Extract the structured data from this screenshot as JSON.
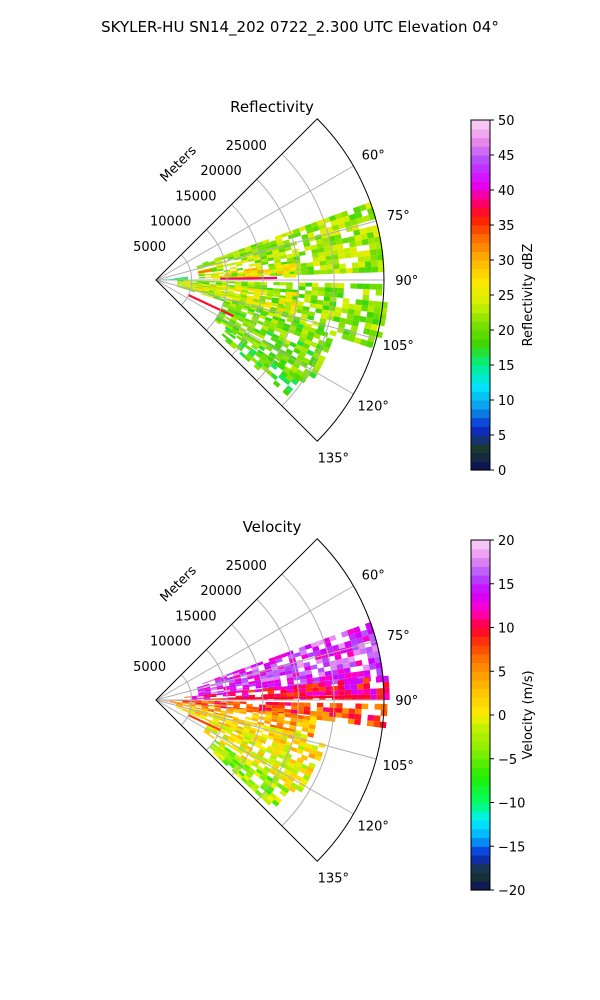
{
  "suptitle": "SKYLER-HU  SN14_202  0722_2.300 UTC Elevation 04°",
  "range_axis_label": "Meters",
  "chart_data": [
    {
      "type": "heatmap",
      "title": "Reflectivity",
      "projection": "polar sector",
      "azimuth_range_deg": [
        45,
        135
      ],
      "range_max_m": 32000,
      "range_ticks": [
        5000,
        10000,
        15000,
        20000,
        25000
      ],
      "range_tick_labels": [
        "5000",
        "10000",
        "15000",
        "20000",
        "25000"
      ],
      "angle_ticks_deg": [
        60,
        75,
        90,
        105,
        120,
        135
      ],
      "angle_tick_labels": [
        "60°",
        "75°",
        "90°",
        "105°",
        "120°",
        "135°"
      ],
      "grid": true,
      "colorbar": {
        "label": "Reflectivity dBZ",
        "min": 0,
        "max": 50,
        "ticks": [
          0,
          5,
          10,
          15,
          20,
          25,
          30,
          35,
          40,
          45,
          50
        ],
        "tick_labels": [
          "0",
          "5",
          "10",
          "15",
          "20",
          "25",
          "30",
          "35",
          "40",
          "45",
          "50"
        ]
      },
      "echo_sectors": [
        {
          "az": [
            70,
            88
          ],
          "r": [
            6000,
            32000
          ],
          "value": 22
        },
        {
          "az": [
            83,
            89
          ],
          "r": [
            8000,
            19000
          ],
          "value": 27
        },
        {
          "az": [
            91,
            107
          ],
          "r": [
            3000,
            32000
          ],
          "value": 21
        },
        {
          "az": [
            95,
            104
          ],
          "r": [
            4000,
            20000
          ],
          "value": 25
        },
        {
          "az": [
            107,
            124
          ],
          "r": [
            10000,
            26000
          ],
          "value": 20
        },
        {
          "az": [
            124,
            131
          ],
          "r": [
            12000,
            24000
          ],
          "value": 19
        },
        {
          "az": [
            84,
            90
          ],
          "r": [
            0,
            4000
          ],
          "value": 16
        }
      ],
      "echo_lines": [
        {
          "az": 89,
          "r": [
            9000,
            17000
          ],
          "value": 38
        },
        {
          "az": 115,
          "r": [
            5000,
            12000
          ],
          "value": 37
        },
        {
          "az": 80,
          "r": [
            6000,
            8000
          ],
          "value": 33
        }
      ]
    },
    {
      "type": "heatmap",
      "title": "Velocity",
      "projection": "polar sector",
      "azimuth_range_deg": [
        45,
        135
      ],
      "range_max_m": 32000,
      "range_ticks": [
        5000,
        10000,
        15000,
        20000,
        25000
      ],
      "range_tick_labels": [
        "5000",
        "10000",
        "15000",
        "20000",
        "25000"
      ],
      "angle_ticks_deg": [
        60,
        75,
        90,
        105,
        120,
        135
      ],
      "angle_tick_labels": [
        "60°",
        "75°",
        "90°",
        "105°",
        "120°",
        "135°"
      ],
      "grid": true,
      "colorbar": {
        "label": "Velocity (m/s)",
        "min": -20,
        "max": 20,
        "ticks": [
          -20,
          -15,
          -10,
          -5,
          0,
          5,
          10,
          15,
          20
        ],
        "tick_labels": [
          "−20",
          "−15",
          "−10",
          "−5",
          "0",
          "5",
          "10",
          "15",
          "20"
        ]
      },
      "echo_sectors": [
        {
          "az": [
            70,
            84
          ],
          "r": [
            6000,
            32000
          ],
          "value": 15
        },
        {
          "az": [
            84,
            89
          ],
          "r": [
            4000,
            32000
          ],
          "value": 11
        },
        {
          "az": [
            91,
            96
          ],
          "r": [
            1000,
            32000
          ],
          "value": 8
        },
        {
          "az": [
            96,
            103
          ],
          "r": [
            2000,
            22000
          ],
          "value": 4
        },
        {
          "az": [
            103,
            112
          ],
          "r": [
            3000,
            24000
          ],
          "value": 1
        },
        {
          "az": [
            112,
            124
          ],
          "r": [
            8000,
            24000
          ],
          "value": 0
        },
        {
          "az": [
            124,
            132
          ],
          "r": [
            10000,
            22000
          ],
          "value": -3
        }
      ],
      "echo_lines": [
        {
          "az": 89,
          "r": [
            10000,
            30000
          ],
          "value": 10
        },
        {
          "az": 115,
          "r": [
            5000,
            10000
          ],
          "value": 8
        }
      ]
    }
  ]
}
